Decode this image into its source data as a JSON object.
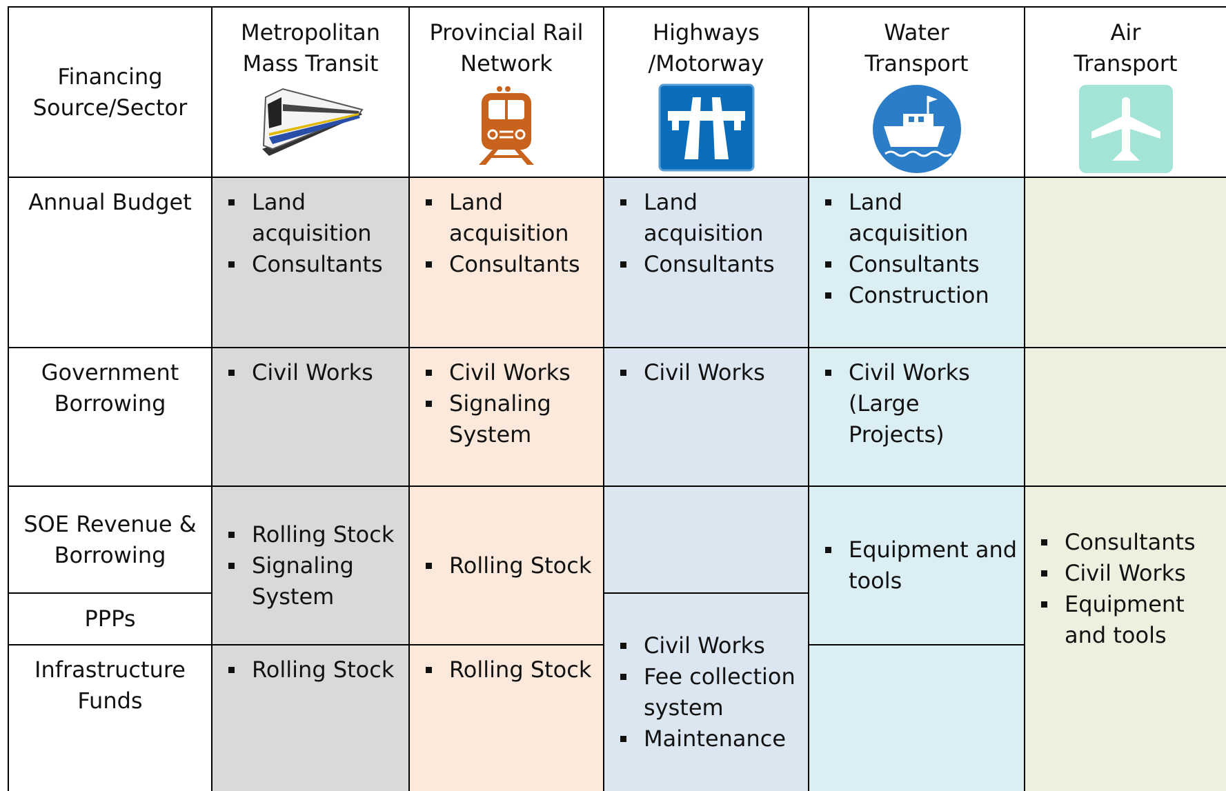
{
  "header": {
    "title": [
      "Financing",
      "Source/Sector"
    ]
  },
  "rows": [
    {
      "label": "Annual Budget"
    },
    {
      "label": "Government Borrowing"
    },
    {
      "label": "SOE Revenue & Borrowing"
    },
    {
      "label": "PPPs"
    },
    {
      "label": "Infrastructure Funds"
    }
  ],
  "columns": [
    {
      "title": [
        "Metropolitan",
        "Mass Transit"
      ],
      "cells": [
        {
          "items": [
            "Land acquisition",
            "Consultants"
          ]
        },
        {
          "items": [
            "Civil Works"
          ]
        },
        {
          "items": [
            "Rolling Stock",
            "Signaling System"
          ]
        },
        {
          "items": [
            "Rolling Stock"
          ]
        }
      ]
    },
    {
      "title": [
        "Provincial Rail",
        "Network"
      ],
      "cells": [
        {
          "items": [
            "Land acquisition",
            "Consultants"
          ]
        },
        {
          "items": [
            "Civil Works",
            "Signaling System"
          ]
        },
        {
          "items": [
            "Rolling Stock"
          ]
        },
        {
          "items": [
            "Rolling Stock"
          ]
        }
      ]
    },
    {
      "title": [
        "Highways",
        "/Motorway"
      ],
      "cells": [
        {
          "items": [
            "Land acquisition",
            "Consultants"
          ]
        },
        {
          "items": [
            "Civil Works"
          ]
        },
        {
          "items": [
            "Civil Works",
            "Fee collection system",
            "Maintenance"
          ]
        }
      ]
    },
    {
      "title": [
        "Water",
        "Transport"
      ],
      "cells": [
        {
          "items": [
            "Land acquisition",
            "Consultants",
            "Construction"
          ]
        },
        {
          "items": [
            "Civil Works (Large Projects)"
          ]
        },
        {
          "items": [
            "Equipment and tools"
          ]
        }
      ]
    },
    {
      "title": [
        "Air",
        "Transport"
      ],
      "cells": [
        {
          "items": [
            "Consultants",
            "Civil Works",
            "Equipment and tools"
          ]
        }
      ]
    }
  ]
}
